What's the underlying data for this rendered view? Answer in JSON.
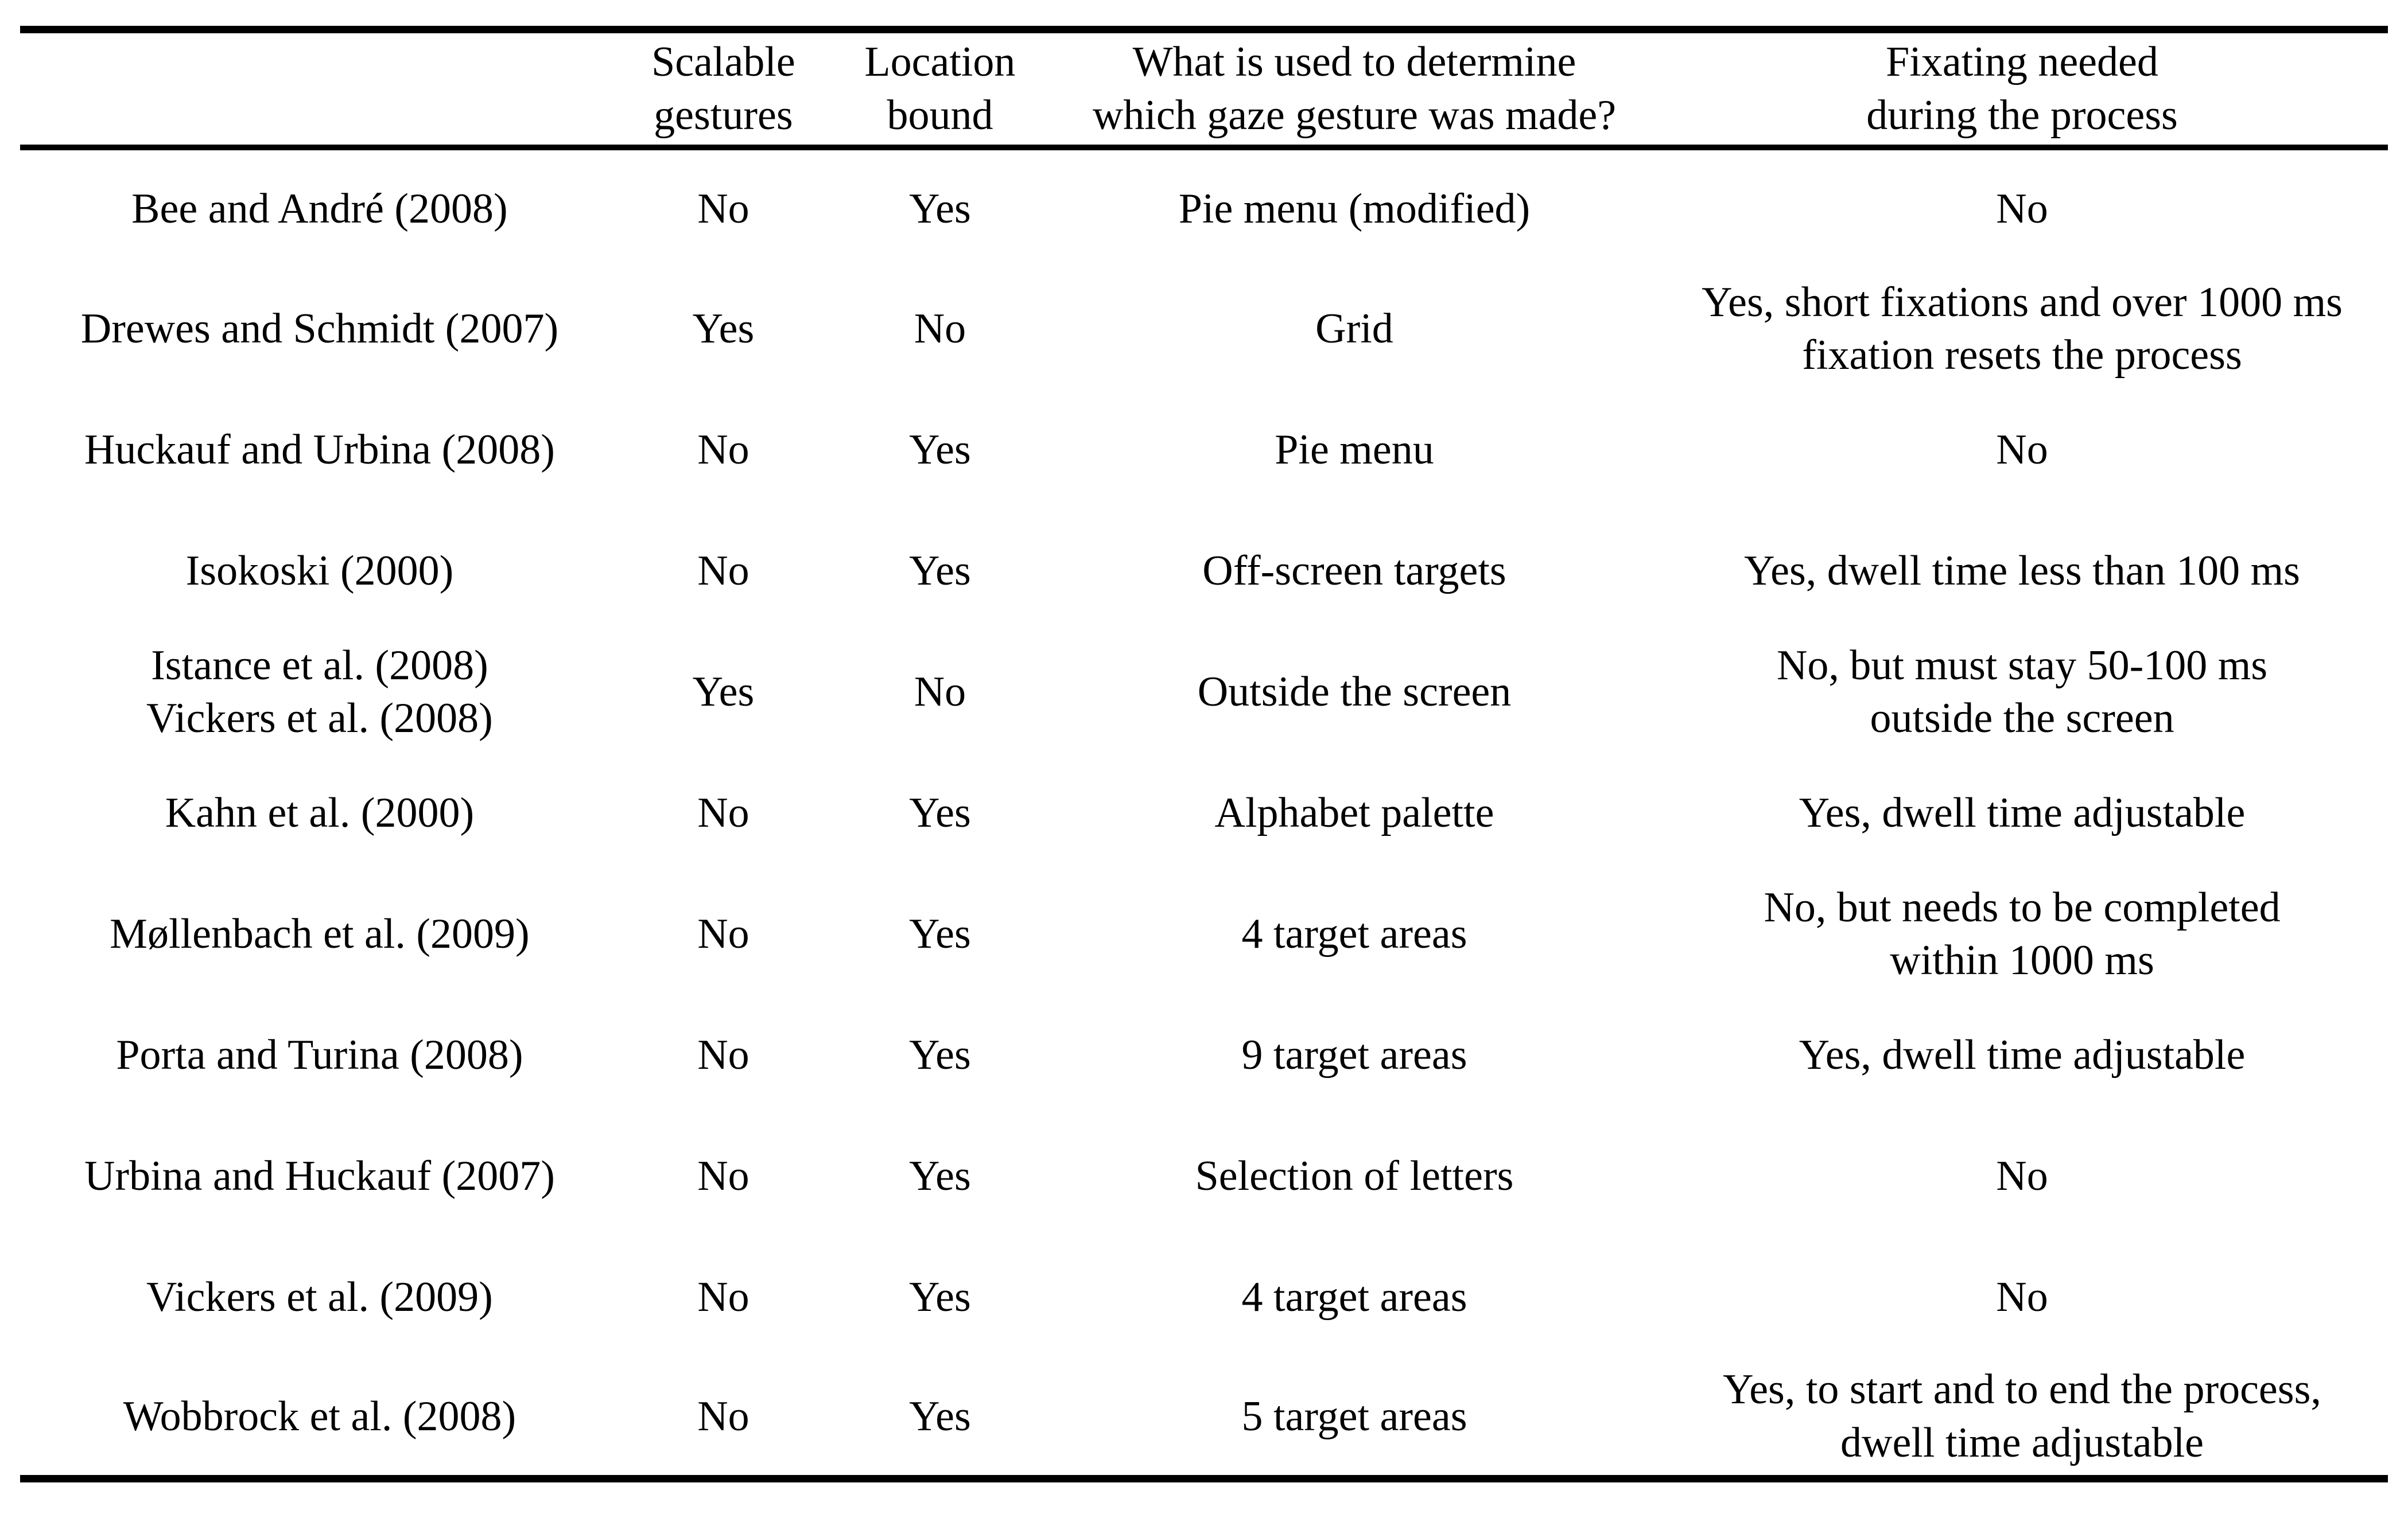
{
  "colors": {
    "background": "#ffffff",
    "text": "#000000",
    "rule": "#000000"
  },
  "table": {
    "headers": [
      "",
      "Scalable\ngestures",
      "Location\nbound",
      "What is used to determine\nwhich gaze gesture was made?",
      "Fixating needed\nduring the process"
    ],
    "rows": [
      {
        "study": "Bee and André (2008)",
        "scalable_gestures": "No",
        "location_bound": "Yes",
        "gesture_determiner": "Pie menu (modified)",
        "fixating_needed": "No"
      },
      {
        "study": "Drewes and Schmidt (2007)",
        "scalable_gestures": "Yes",
        "location_bound": "No",
        "gesture_determiner": "Grid",
        "fixating_needed": "Yes, short fixations and over 1000 ms\nfixation resets the process"
      },
      {
        "study": "Huckauf and Urbina (2008)",
        "scalable_gestures": "No",
        "location_bound": "Yes",
        "gesture_determiner": "Pie menu",
        "fixating_needed": "No"
      },
      {
        "study": "Isokoski (2000)",
        "scalable_gestures": "No",
        "location_bound": "Yes",
        "gesture_determiner": "Off-screen targets",
        "fixating_needed": "Yes, dwell time less than 100 ms"
      },
      {
        "study": "Istance et al. (2008)\nVickers et al. (2008)",
        "scalable_gestures": "Yes",
        "location_bound": "No",
        "gesture_determiner": "Outside the screen",
        "fixating_needed": "No, but must stay 50-100 ms\noutside the screen"
      },
      {
        "study": "Kahn et al. (2000)",
        "scalable_gestures": "No",
        "location_bound": "Yes",
        "gesture_determiner": "Alphabet palette",
        "fixating_needed": "Yes, dwell time adjustable"
      },
      {
        "study": "Møllenbach et al. (2009)",
        "scalable_gestures": "No",
        "location_bound": "Yes",
        "gesture_determiner": "4 target areas",
        "fixating_needed": "No, but needs to be completed\nwithin 1000 ms"
      },
      {
        "study": "Porta and Turina (2008)",
        "scalable_gestures": "No",
        "location_bound": "Yes",
        "gesture_determiner": "9 target areas",
        "fixating_needed": "Yes, dwell time adjustable"
      },
      {
        "study": "Urbina and Huckauf (2007)",
        "scalable_gestures": "No",
        "location_bound": "Yes",
        "gesture_determiner": "Selection of letters",
        "fixating_needed": "No"
      },
      {
        "study": "Vickers et al. (2009)",
        "scalable_gestures": "No",
        "location_bound": "Yes",
        "gesture_determiner": "4 target areas",
        "fixating_needed": "No"
      },
      {
        "study": "Wobbrock et al. (2008)",
        "scalable_gestures": "No",
        "location_bound": "Yes",
        "gesture_determiner": "5 target areas",
        "fixating_needed": "Yes, to start and to end the process,\ndwell time adjustable"
      }
    ]
  }
}
